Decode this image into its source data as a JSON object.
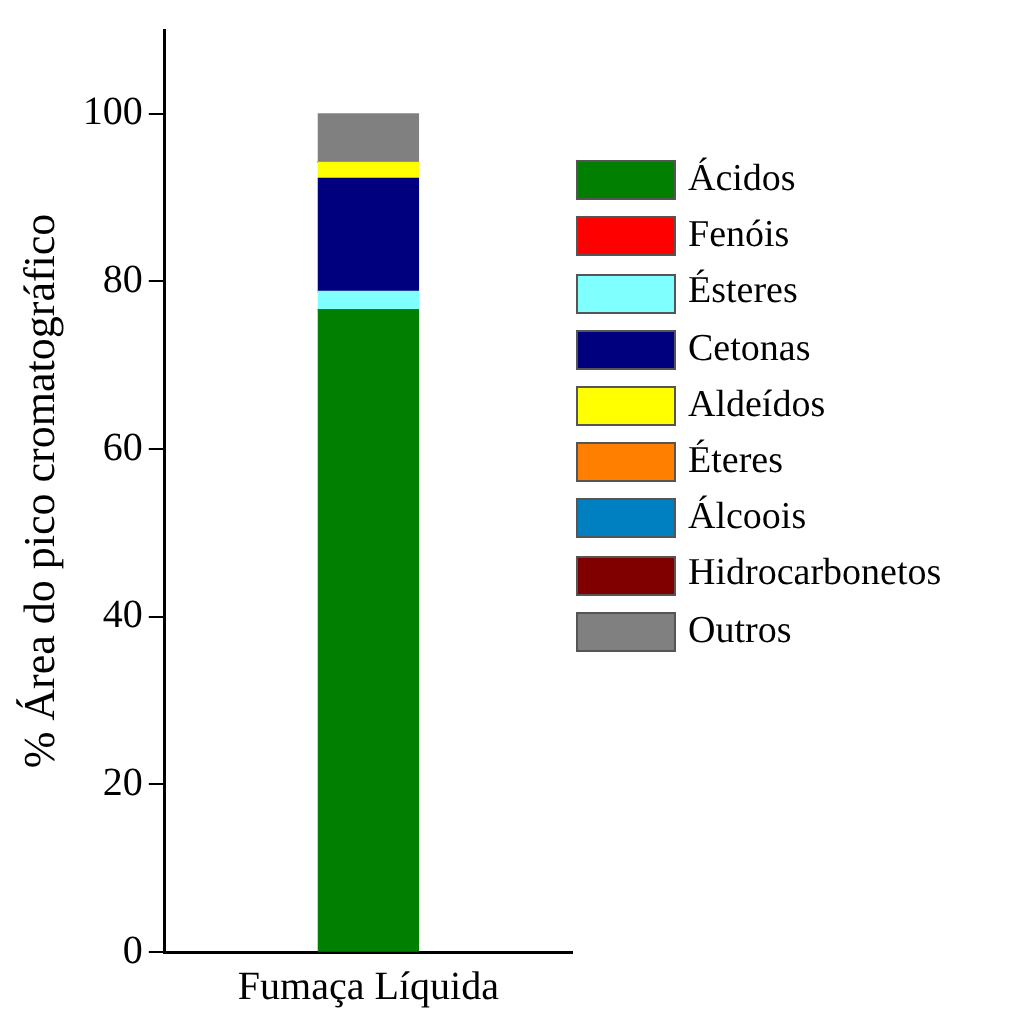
{
  "chart_data": {
    "type": "bar",
    "stacked": true,
    "ylabel": "% Área do pico cromatográfico",
    "categories": [
      "Fumaça Líquida"
    ],
    "ylim": [
      0,
      110
    ],
    "yticks": [
      0,
      20,
      40,
      60,
      80,
      100
    ],
    "grid": false,
    "legend": "right",
    "series": [
      {
        "name": "Ácidos",
        "color": "#007f00",
        "values": [
          76.6
        ]
      },
      {
        "name": "Fenóis",
        "color": "#ff0000",
        "values": [
          0
        ]
      },
      {
        "name": "Ésteres",
        "color": "#80ffff",
        "values": [
          2.2
        ]
      },
      {
        "name": "Cetonas",
        "color": "#00007f",
        "values": [
          13.5
        ]
      },
      {
        "name": "Aldeídos",
        "color": "#ffff00",
        "values": [
          1.9
        ]
      },
      {
        "name": "Éteres",
        "color": "#ff8000",
        "values": [
          0
        ]
      },
      {
        "name": "Álcoois",
        "color": "#0080c0",
        "values": [
          0
        ]
      },
      {
        "name": "Hidrocarbonetos",
        "color": "#800000",
        "values": [
          0
        ]
      },
      {
        "name": "Outros",
        "color": "#808080",
        "values": [
          5.8
        ]
      }
    ]
  }
}
